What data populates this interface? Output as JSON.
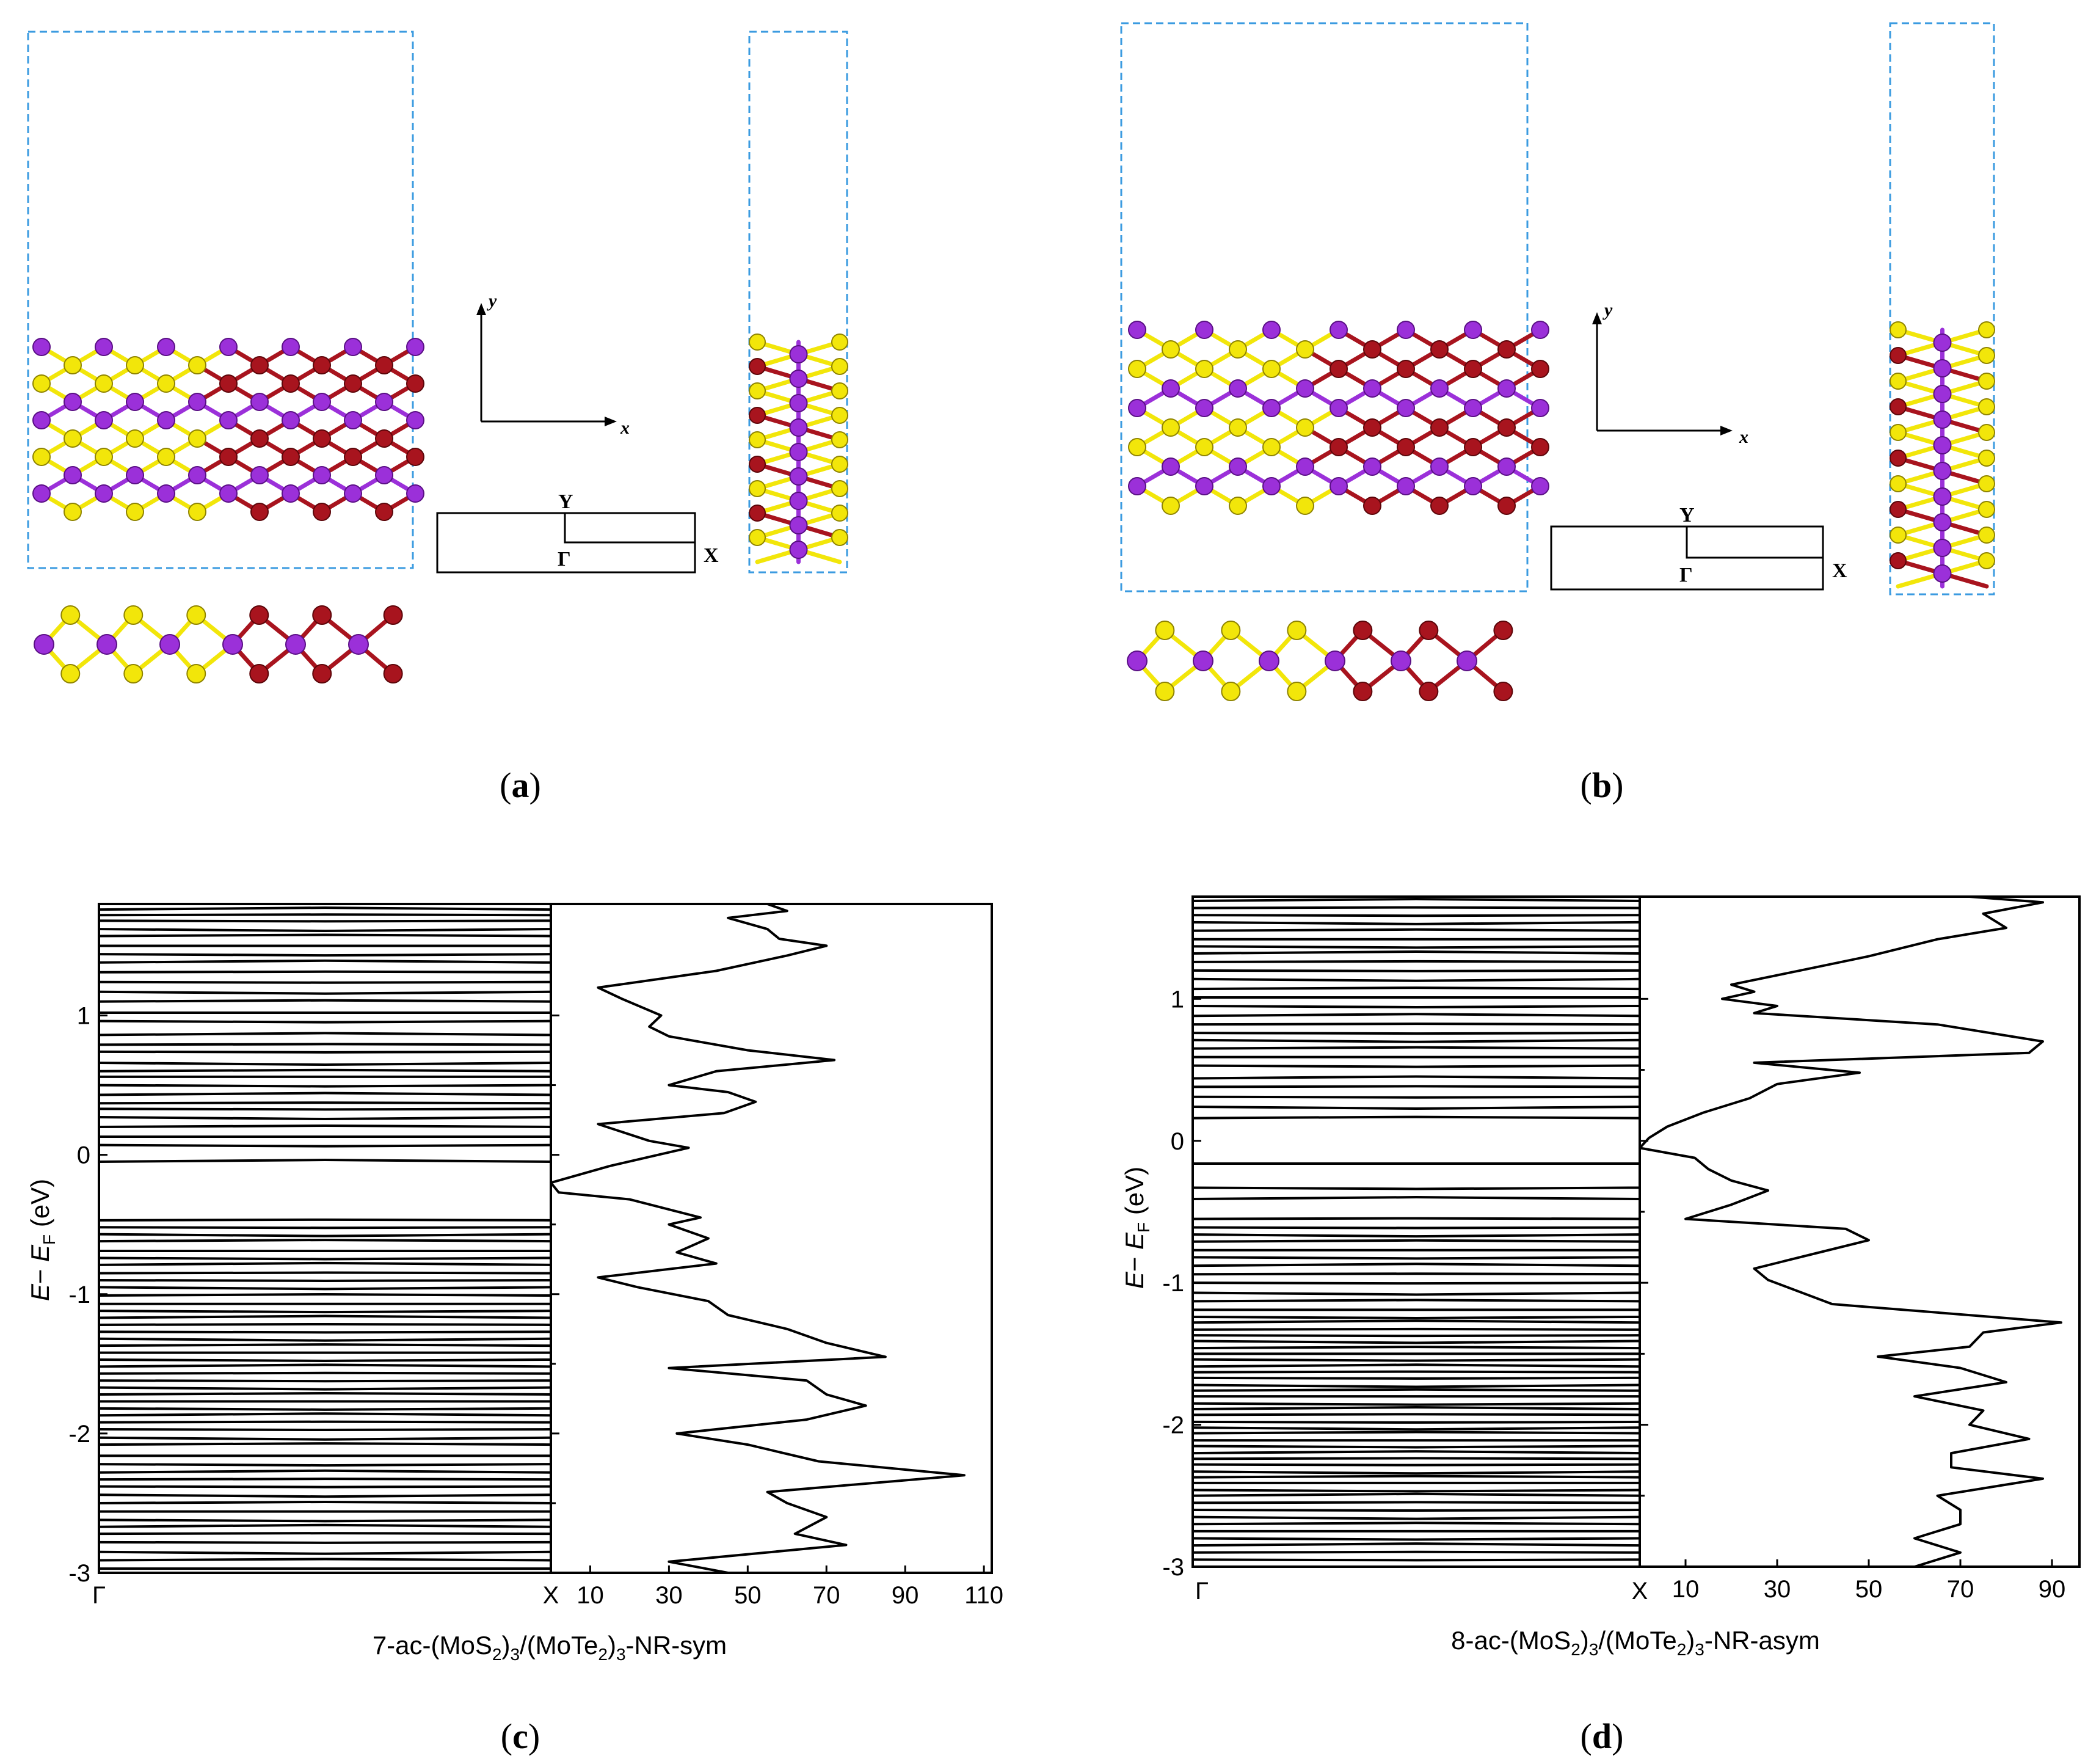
{
  "colors": {
    "mo": "#9b30d9",
    "mo_edge": "#5a0f85",
    "s": "#f2e60a",
    "s_edge": "#8f8400",
    "te": "#a8141e",
    "te_edge": "#5c0509",
    "cell": "#3b9be0",
    "ink": "#000000"
  },
  "atom_types": {
    "mo": "molybdenum-atom",
    "s": "sulfur-atom",
    "te": "tellurium-atom"
  },
  "panels": {
    "a": {
      "caption_open": "(",
      "caption_letter": "a",
      "caption_close": ")",
      "axis_x": "x",
      "axis_y": "y",
      "bz_gamma": "Γ",
      "bz_x": "X",
      "bz_y": "Y",
      "ring_cols": 3,
      "mos2_cols": 3,
      "mote2_cols": 3
    },
    "b": {
      "caption_open": "(",
      "caption_letter": "b",
      "caption_close": ")",
      "axis_x": "x",
      "axis_y": "y",
      "bz_gamma": "Γ",
      "bz_x": "X",
      "bz_y": "Y",
      "ring_cols": 3,
      "mos2_cols": 3,
      "mote2_cols": 3
    },
    "c": {
      "caption_open": "(",
      "caption_letter": "c",
      "caption_close": ")",
      "title": "7-ac-(MoS2)3/(MoTe2)3-NR-sym",
      "title_parts": [
        "7-ac-(MoS",
        "2",
        ")",
        "3",
        "/(MoTe",
        "2",
        ")",
        "3",
        "-NR-sym"
      ],
      "ylabel": "E− EF (eV)",
      "ylabel_parts": [
        "E",
        "− ",
        "E",
        "F",
        " (eV)"
      ],
      "yticks": [
        "-3",
        "-2",
        "-1",
        "0",
        "1"
      ],
      "kpath": [
        "Γ",
        "X"
      ],
      "dos_ticks": [
        "10",
        "30",
        "50",
        "70",
        "90",
        "110"
      ]
    },
    "d": {
      "caption_open": "(",
      "caption_letter": "d",
      "caption_close": ")",
      "title": "8-ac-(MoS2)3/(MoTe2)3-NR-asym",
      "title_parts": [
        "8-ac-(MoS",
        "2",
        ")",
        "3",
        "/(MoTe",
        "2",
        ")",
        "3",
        "-NR-asym"
      ],
      "ylabel": "E− EF (eV)",
      "ylabel_parts": [
        "E",
        "− ",
        "E",
        "F",
        " (eV)"
      ],
      "yticks": [
        "-3",
        "-2",
        "-1",
        "0",
        "1"
      ],
      "kpath": [
        "Γ",
        "X"
      ],
      "dos_ticks": [
        "10",
        "30",
        "50",
        "70",
        "90"
      ]
    }
  },
  "chart_data": [
    {
      "panel": "c",
      "type": "line",
      "title": "7-ac-(MoS2)3/(MoTe2)3-NR-sym",
      "ylabel": "E− EF (eV)",
      "ylim": [
        -3,
        1.8
      ],
      "band_xlabels": [
        "Γ",
        "X"
      ],
      "band_energies": [
        1.76,
        1.72,
        1.68,
        1.62,
        1.57,
        1.5,
        1.44,
        1.38,
        1.31,
        1.24,
        1.17,
        1.1,
        1.02,
        0.96,
        0.86,
        0.79,
        0.74,
        0.66,
        0.6,
        0.56,
        0.5,
        0.43,
        0.37,
        0.33,
        0.27,
        0.2,
        0.13,
        0.07,
        -0.05,
        -0.47,
        -0.52,
        -0.57,
        -0.62,
        -0.69,
        -0.74,
        -0.79,
        -0.85,
        -0.9,
        -0.95,
        -1.01,
        -1.07,
        -1.12,
        -1.17,
        -1.22,
        -1.27,
        -1.32,
        -1.37,
        -1.42,
        -1.47,
        -1.52,
        -1.57,
        -1.62,
        -1.67,
        -1.72,
        -1.77,
        -1.82,
        -1.87,
        -1.92,
        -1.97,
        -2.03,
        -2.08,
        -2.16,
        -2.22,
        -2.28,
        -2.33,
        -2.38,
        -2.44,
        -2.5,
        -2.56,
        -2.62,
        -2.67,
        -2.72,
        -2.78,
        -2.85,
        -2.91,
        -2.97
      ],
      "dos_xlim": [
        0,
        112
      ],
      "dos_xticks": [
        10,
        30,
        50,
        70,
        90,
        110
      ],
      "dos": {
        "energy": [
          1.8,
          1.75,
          1.7,
          1.62,
          1.55,
          1.5,
          1.43,
          1.32,
          1.2,
          1.12,
          1.0,
          0.92,
          0.85,
          0.75,
          0.68,
          0.6,
          0.5,
          0.45,
          0.38,
          0.3,
          0.22,
          0.1,
          0.05,
          -0.08,
          -0.2,
          -0.27,
          -0.32,
          -0.45,
          -0.5,
          -0.6,
          -0.7,
          -0.78,
          -0.88,
          -0.95,
          -1.05,
          -1.15,
          -1.25,
          -1.35,
          -1.45,
          -1.53,
          -1.62,
          -1.72,
          -1.8,
          -1.9,
          -2.0,
          -2.08,
          -2.2,
          -2.3,
          -2.42,
          -2.5,
          -2.6,
          -2.72,
          -2.8,
          -2.92,
          -3.0
        ],
        "value": [
          55,
          60,
          45,
          55,
          58,
          70,
          60,
          42,
          12,
          18,
          28,
          25,
          30,
          50,
          72,
          42,
          30,
          45,
          52,
          44,
          12,
          25,
          35,
          15,
          0,
          2,
          20,
          38,
          30,
          40,
          32,
          42,
          12,
          22,
          40,
          45,
          60,
          70,
          85,
          30,
          65,
          70,
          80,
          65,
          32,
          50,
          68,
          105,
          55,
          60,
          70,
          62,
          75,
          30,
          45
        ]
      }
    },
    {
      "panel": "d",
      "type": "line",
      "title": "8-ac-(MoS2)3/(MoTe2)3-NR-asym",
      "ylabel": "E− EF (eV)",
      "ylim": [
        -3,
        1.72
      ],
      "band_xlabels": [
        "Γ",
        "X"
      ],
      "band_energies": [
        1.69,
        1.64,
        1.59,
        1.54,
        1.48,
        1.42,
        1.37,
        1.32,
        1.26,
        1.2,
        1.14,
        1.07,
        1.01,
        0.95,
        0.88,
        0.82,
        0.76,
        0.71,
        0.65,
        0.59,
        0.53,
        0.44,
        0.38,
        0.31,
        0.24,
        0.16,
        -0.16,
        -0.33,
        -0.41,
        -0.55,
        -0.61,
        -0.66,
        -0.71,
        -0.77,
        -0.82,
        -0.88,
        -0.94,
        -1.0,
        -1.07,
        -1.13,
        -1.19,
        -1.24,
        -1.28,
        -1.33,
        -1.37,
        -1.41,
        -1.46,
        -1.5,
        -1.54,
        -1.59,
        -1.63,
        -1.67,
        -1.72,
        -1.76,
        -1.8,
        -1.85,
        -1.89,
        -1.93,
        -1.98,
        -2.02,
        -2.06,
        -2.11,
        -2.15,
        -2.2,
        -2.24,
        -2.28,
        -2.33,
        -2.37,
        -2.41,
        -2.46,
        -2.5,
        -2.55,
        -2.6,
        -2.65,
        -2.7,
        -2.75,
        -2.8,
        -2.85,
        -2.9,
        -2.95
      ],
      "dos_xlim": [
        0,
        96
      ],
      "dos_xticks": [
        10,
        30,
        50,
        70,
        90
      ],
      "dos": {
        "energy": [
          1.72,
          1.68,
          1.6,
          1.5,
          1.42,
          1.3,
          1.2,
          1.1,
          1.05,
          1.0,
          0.95,
          0.9,
          0.82,
          0.7,
          0.62,
          0.55,
          0.48,
          0.4,
          0.3,
          0.2,
          0.1,
          0.02,
          -0.05,
          -0.12,
          -0.2,
          -0.28,
          -0.35,
          -0.45,
          -0.55,
          -0.62,
          -0.7,
          -0.78,
          -0.9,
          -0.98,
          -1.15,
          -1.28,
          -1.35,
          -1.45,
          -1.52,
          -1.6,
          -1.7,
          -1.8,
          -1.9,
          -2.0,
          -2.1,
          -2.2,
          -2.3,
          -2.38,
          -2.5,
          -2.6,
          -2.7,
          -2.8,
          -2.9,
          -3.0
        ],
        "value": [
          72,
          88,
          75,
          80,
          65,
          50,
          35,
          20,
          25,
          18,
          30,
          25,
          65,
          88,
          85,
          25,
          48,
          30,
          24,
          14,
          6,
          2,
          0,
          12,
          15,
          20,
          28,
          20,
          10,
          45,
          50,
          40,
          25,
          28,
          42,
          92,
          75,
          72,
          52,
          70,
          80,
          60,
          75,
          72,
          85,
          68,
          68,
          88,
          65,
          70,
          70,
          60,
          70,
          60
        ]
      }
    }
  ]
}
